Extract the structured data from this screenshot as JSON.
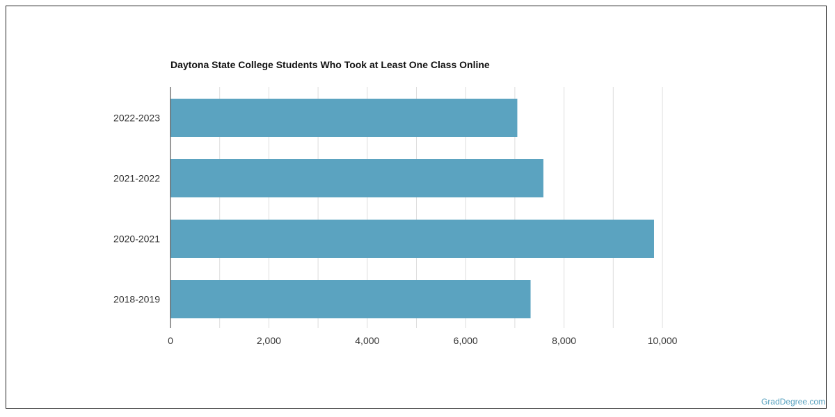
{
  "chart_data": {
    "type": "bar",
    "orientation": "horizontal",
    "title": "Daytona State College Students Who Took at Least One Class Online",
    "categories": [
      "2022-2023",
      "2021-2022",
      "2020-2021",
      "2018-2019"
    ],
    "values": [
      7050,
      7580,
      9830,
      7320
    ],
    "xlim": [
      0,
      10000
    ],
    "xticks": [
      0,
      2000,
      4000,
      6000,
      8000,
      10000
    ],
    "xtick_labels": [
      "0",
      "2,000",
      "4,000",
      "6,000",
      "8,000",
      "10,000"
    ],
    "grid": true,
    "bar_color": "#5ba3c0"
  },
  "watermark": "GradDegree.com"
}
